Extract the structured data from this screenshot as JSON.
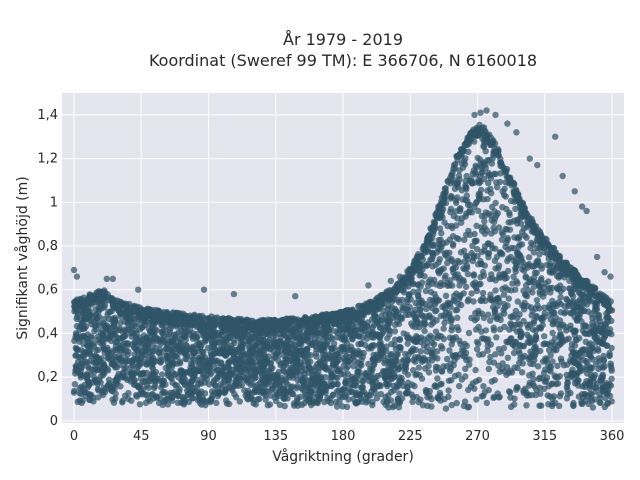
{
  "chart_data": {
    "type": "scatter",
    "title": "År 1979 - 2019",
    "subtitle": "Koordinat (Sweref 99 TM): E 366706, N 6160018",
    "xlabel": "Vågriktning (grader)",
    "ylabel": "Signifikant våghöjd (m)",
    "xlim": [
      -8,
      368
    ],
    "ylim": [
      -0.01,
      1.5
    ],
    "x_ticks": [
      0,
      45,
      90,
      135,
      180,
      225,
      270,
      315,
      360
    ],
    "x_tick_labels": [
      "0",
      "45",
      "90",
      "135",
      "180",
      "225",
      "270",
      "315",
      "360"
    ],
    "y_ticks": [
      0,
      0.2,
      0.4,
      0.6,
      0.8,
      1.0,
      1.2,
      1.4
    ],
    "y_tick_labels": [
      "0",
      "0,2",
      "0,4",
      "0,6",
      "0,8",
      "1",
      "1,2",
      "1,4"
    ],
    "grid": true,
    "colors": {
      "marker": "#2f5468",
      "plot_background": "#e5e5ef",
      "grid": "#ffffff"
    },
    "series": [
      {
        "envelope_upper": [
          [
            0,
            0.55
          ],
          [
            10,
            0.58
          ],
          [
            20,
            0.6
          ],
          [
            30,
            0.55
          ],
          [
            45,
            0.52
          ],
          [
            60,
            0.5
          ],
          [
            90,
            0.48
          ],
          [
            120,
            0.46
          ],
          [
            150,
            0.47
          ],
          [
            180,
            0.5
          ],
          [
            200,
            0.55
          ],
          [
            215,
            0.62
          ],
          [
            225,
            0.7
          ],
          [
            235,
            0.82
          ],
          [
            245,
            1.0
          ],
          [
            255,
            1.2
          ],
          [
            265,
            1.32
          ],
          [
            272,
            1.36
          ],
          [
            280,
            1.3
          ],
          [
            290,
            1.15
          ],
          [
            300,
            1.0
          ],
          [
            310,
            0.88
          ],
          [
            320,
            0.8
          ],
          [
            330,
            0.72
          ],
          [
            340,
            0.66
          ],
          [
            350,
            0.6
          ],
          [
            360,
            0.55
          ]
        ],
        "envelope_lower": [
          [
            0,
            0.07
          ],
          [
            90,
            0.07
          ],
          [
            180,
            0.06
          ],
          [
            225,
            0.06
          ],
          [
            270,
            0.05
          ],
          [
            315,
            0.05
          ],
          [
            360,
            0.06
          ]
        ],
        "outliers": [
          [
            0,
            0.69
          ],
          [
            2,
            0.66
          ],
          [
            22,
            0.65
          ],
          [
            26,
            0.65
          ],
          [
            43,
            0.6
          ],
          [
            87,
            0.6
          ],
          [
            107,
            0.58
          ],
          [
            148,
            0.57
          ],
          [
            197,
            0.62
          ],
          [
            212,
            0.64
          ],
          [
            218,
            0.66
          ],
          [
            268,
            1.4
          ],
          [
            272,
            1.41
          ],
          [
            276,
            1.42
          ],
          [
            282,
            1.4
          ],
          [
            290,
            1.36
          ],
          [
            296,
            1.32
          ],
          [
            305,
            1.2
          ],
          [
            310,
            1.17
          ],
          [
            322,
            1.3
          ],
          [
            327,
            1.12
          ],
          [
            335,
            1.05
          ],
          [
            340,
            0.98
          ],
          [
            343,
            0.96
          ],
          [
            350,
            0.75
          ],
          [
            355,
            0.68
          ],
          [
            359,
            0.66
          ]
        ]
      }
    ]
  }
}
